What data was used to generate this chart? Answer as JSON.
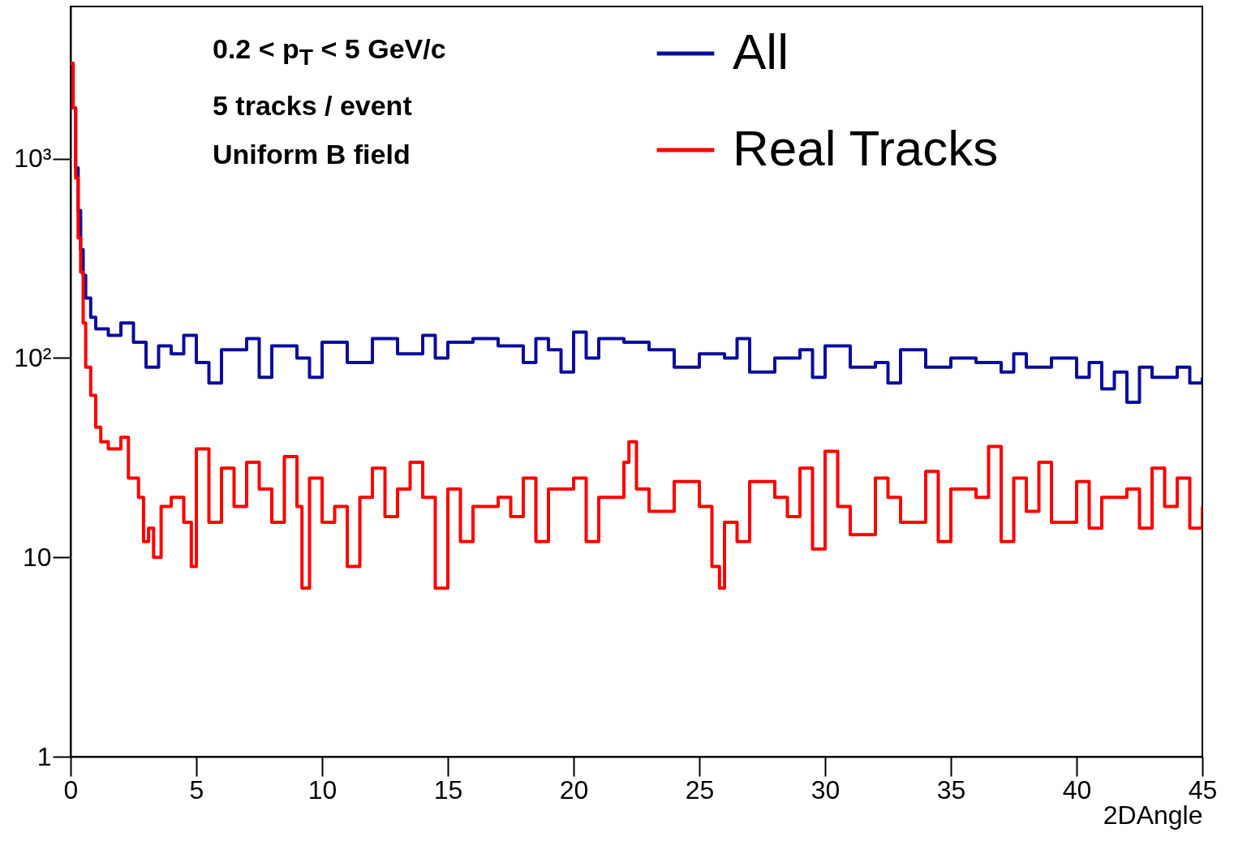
{
  "chart_data": {
    "type": "step",
    "xlabel": "2DAngle",
    "log": "y",
    "grid": false,
    "legend": "top right",
    "xlim": [
      0,
      45
    ],
    "xticks": [
      0,
      5,
      10,
      15,
      20,
      25,
      30,
      35,
      40,
      45
    ],
    "ylim": [
      1,
      5800
    ],
    "yticks": [
      1,
      10,
      {
        "value": 100,
        "label": "10²"
      },
      {
        "value": 1000,
        "label": "10³"
      }
    ],
    "annotations": [
      "0.2 < p$_{T}$ < 5 GeV/c",
      "5 tracks / event",
      "Uniform B field"
    ],
    "series": [
      {
        "name": "All",
        "color": "#0c0c9c",
        "x": [
          0,
          0.1,
          0.2,
          0.3,
          0.4,
          0.5,
          0.6,
          0.8,
          1,
          1.5,
          2,
          2.5,
          3,
          3.5,
          4,
          4.5,
          5,
          5.5,
          6,
          7,
          7.5,
          8,
          9,
          9.5,
          10,
          11,
          12,
          13,
          14,
          14.5,
          15,
          16,
          17,
          18,
          18.5,
          19,
          19.5,
          20,
          20.5,
          21,
          22,
          23,
          24,
          25,
          26,
          26.5,
          27,
          28,
          29,
          29.5,
          30,
          31,
          32,
          32.5,
          33,
          34,
          35,
          36,
          37,
          37.5,
          38,
          39,
          40,
          40.5,
          41,
          41.5,
          42,
          42.5,
          43,
          44,
          44.5,
          45
        ],
        "values": [
          3000,
          1800,
          900,
          550,
          350,
          260,
          200,
          160,
          140,
          130,
          150,
          120,
          90,
          115,
          105,
          130,
          95,
          75,
          110,
          125,
          80,
          115,
          100,
          80,
          120,
          95,
          125,
          105,
          130,
          100,
          120,
          125,
          115,
          95,
          125,
          110,
          85,
          135,
          100,
          125,
          120,
          110,
          90,
          105,
          100,
          125,
          85,
          100,
          110,
          80,
          115,
          90,
          95,
          75,
          110,
          90,
          100,
          95,
          85,
          105,
          90,
          100,
          80,
          95,
          70,
          85,
          60,
          90,
          80,
          90,
          75,
          80
        ]
      },
      {
        "name": "Real Tracks",
        "color": "#ff0000",
        "x": [
          0,
          0.1,
          0.2,
          0.3,
          0.4,
          0.5,
          0.6,
          0.8,
          1,
          1.2,
          1.5,
          2,
          2.3,
          2.7,
          2.9,
          3.1,
          3.3,
          3.6,
          4,
          4.5,
          4.8,
          5,
          5.5,
          6,
          6.5,
          7,
          7.5,
          8,
          8.5,
          9,
          9.2,
          9.5,
          10,
          10.5,
          11,
          11.5,
          12,
          12.5,
          13,
          13.5,
          14,
          14.5,
          15,
          15.5,
          16,
          17,
          17.5,
          18,
          18.5,
          19,
          20,
          20.5,
          21,
          22,
          22.2,
          22.5,
          23,
          24,
          25,
          25.5,
          25.8,
          26,
          26.5,
          27,
          28,
          28.5,
          29,
          29.5,
          30,
          30.5,
          31,
          32,
          32.5,
          33,
          34,
          34.5,
          35,
          36,
          36.5,
          37,
          37.5,
          38,
          38.5,
          39,
          40,
          40.5,
          41,
          42,
          42.5,
          43,
          43.5,
          44,
          44.5,
          45
        ],
        "values": [
          3000,
          1800,
          800,
          400,
          270,
          150,
          90,
          65,
          45,
          38,
          35,
          40,
          25,
          20,
          12,
          14,
          10,
          18,
          20,
          15,
          9,
          35,
          15,
          28,
          18,
          30,
          22,
          15,
          32,
          18,
          7,
          25,
          15,
          18,
          9,
          20,
          28,
          16,
          22,
          30,
          20,
          7,
          22,
          12,
          18,
          20,
          16,
          25,
          12,
          22,
          25,
          12,
          20,
          30,
          38,
          22,
          17,
          24,
          18,
          9,
          7,
          15,
          12,
          24,
          20,
          16,
          28,
          11,
          34,
          18,
          13,
          25,
          20,
          15,
          27,
          12,
          22,
          20,
          36,
          12,
          25,
          17,
          30,
          15,
          24,
          14,
          20,
          22,
          14,
          28,
          18,
          25,
          14,
          18
        ]
      }
    ]
  }
}
